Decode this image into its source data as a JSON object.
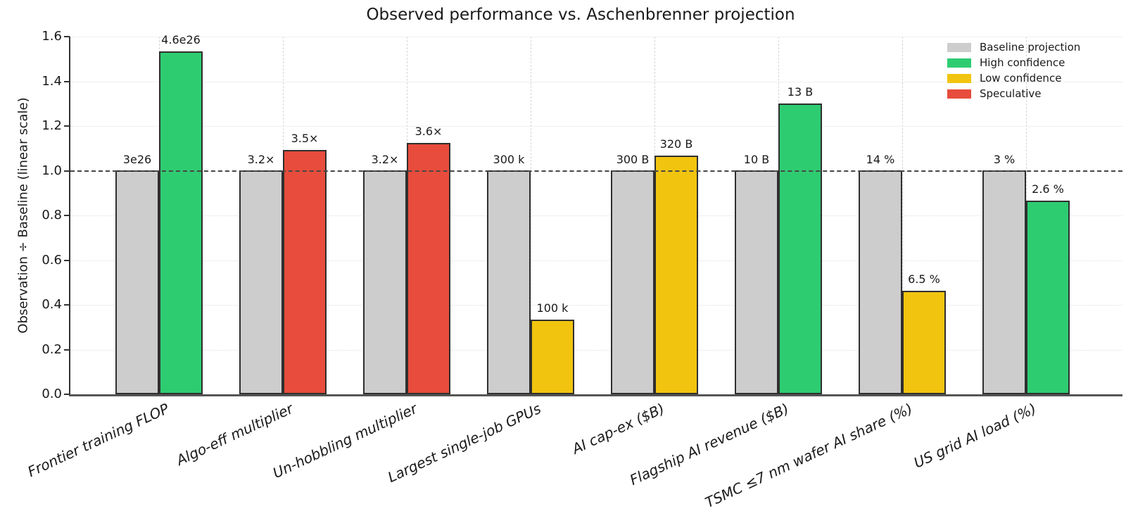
{
  "chart_data": {
    "type": "bar",
    "title": "Observed performance vs. Aschenbrenner projection",
    "ylabel": "Observation ÷ Baseline (linear scale)",
    "xlabel": "",
    "ylim": [
      0,
      1.6
    ],
    "yticks": [
      "0.0",
      "0.2",
      "0.4",
      "0.6",
      "0.8",
      "1.0",
      "1.2",
      "1.4",
      "1.6"
    ],
    "grid": true,
    "reference_line": 1.0,
    "legend_position": "top-right",
    "colors": {
      "baseline": "#cdcdcd",
      "high": "#2ecc71",
      "low": "#f1c40f",
      "speculative": "#e74c3c",
      "bar_edge": "#2f2f2f"
    },
    "legend": [
      {
        "label": "Baseline projection",
        "key": "baseline"
      },
      {
        "label": "High confidence",
        "key": "high"
      },
      {
        "label": "Low confidence",
        "key": "low"
      },
      {
        "label": "Speculative",
        "key": "speculative"
      }
    ],
    "categories": [
      "Frontier training FLOP",
      "Algo-eff multiplier",
      "Un-hobbling multiplier",
      "Largest single-job GPUs",
      "AI cap-ex ($B)",
      "Flagship AI revenue ($B)",
      "TSMC ≤7 nm wafer AI share (%)",
      "US grid AI load (%)"
    ],
    "groups": [
      {
        "category": "Frontier training FLOP",
        "baseline_label": "3e26",
        "observed_label": "4.6e26",
        "baseline_ratio": 1.0,
        "observed_ratio": 1.5333,
        "confidence": "high"
      },
      {
        "category": "Algo-eff multiplier",
        "baseline_label": "3.2×",
        "observed_label": "3.5×",
        "baseline_ratio": 1.0,
        "observed_ratio": 1.0938,
        "confidence": "speculative"
      },
      {
        "category": "Un-hobbling multiplier",
        "baseline_label": "3.2×",
        "observed_label": "3.6×",
        "baseline_ratio": 1.0,
        "observed_ratio": 1.125,
        "confidence": "speculative"
      },
      {
        "category": "Largest single-job GPUs",
        "baseline_label": "300 k",
        "observed_label": "100 k",
        "baseline_ratio": 1.0,
        "observed_ratio": 0.3333,
        "confidence": "low"
      },
      {
        "category": "AI cap-ex ($B)",
        "baseline_label": "300 B",
        "observed_label": "320 B",
        "baseline_ratio": 1.0,
        "observed_ratio": 1.0667,
        "confidence": "low"
      },
      {
        "category": "Flagship AI revenue ($B)",
        "baseline_label": "10 B",
        "observed_label": "13 B",
        "baseline_ratio": 1.0,
        "observed_ratio": 1.3,
        "confidence": "high"
      },
      {
        "category": "TSMC ≤7 nm wafer AI share (%)",
        "baseline_label": "14 %",
        "observed_label": "6.5 %",
        "baseline_ratio": 1.0,
        "observed_ratio": 0.4643,
        "confidence": "low"
      },
      {
        "category": "US grid AI load (%)",
        "baseline_label": "3 %",
        "observed_label": "2.6 %",
        "baseline_ratio": 1.0,
        "observed_ratio": 0.8667,
        "confidence": "high"
      }
    ]
  }
}
